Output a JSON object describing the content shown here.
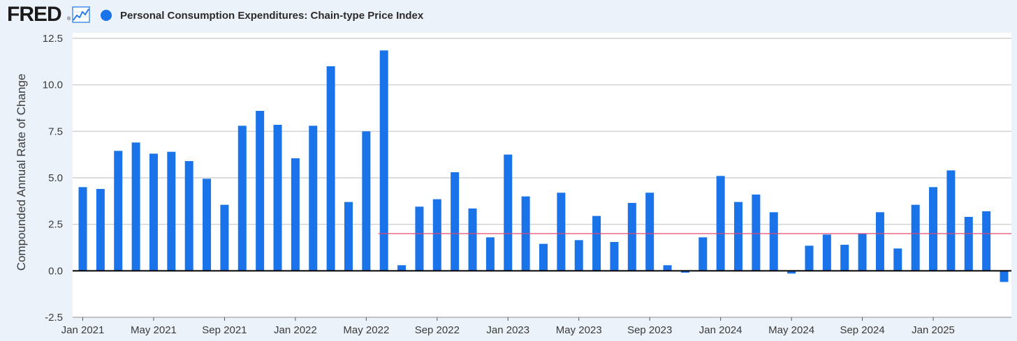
{
  "header": {
    "logo_text": "FRED",
    "logo_mark": "®",
    "graph_icon": "line-graph-icon"
  },
  "legend": {
    "label": "Personal Consumption Expenditures: Chain-type Price Index",
    "color": "#1a73e8"
  },
  "colors": {
    "bar": "#1a73e8",
    "reference_line": "#e34a6f",
    "zero_line": "#000000",
    "grid": "#c8c8c8",
    "plot_bg": "#ffffff",
    "page_bg": "#ecf2fa"
  },
  "chart_data": {
    "type": "bar",
    "title": "",
    "xlabel": "",
    "ylabel": "Compounded Annual Rate of Change",
    "ylim": [
      -2.5,
      12.5
    ],
    "yticks": [
      {
        "value": 12.5,
        "label": "12.5"
      },
      {
        "value": 10.0,
        "label": "10.0"
      },
      {
        "value": 7.5,
        "label": "7.5"
      },
      {
        "value": 5.0,
        "label": "5.0"
      },
      {
        "value": 2.5,
        "label": "2.5"
      },
      {
        "value": 0.0,
        "label": "0.0"
      },
      {
        "value": -2.5,
        "label": "-2.5"
      }
    ],
    "xticks": [
      {
        "index": 0,
        "label": "Jan 2021"
      },
      {
        "index": 4,
        "label": "May 2021"
      },
      {
        "index": 8,
        "label": "Sep 2021"
      },
      {
        "index": 12,
        "label": "Jan 2022"
      },
      {
        "index": 16,
        "label": "May 2022"
      },
      {
        "index": 20,
        "label": "Sep 2022"
      },
      {
        "index": 24,
        "label": "Jan 2023"
      },
      {
        "index": 28,
        "label": "May 2023"
      },
      {
        "index": 32,
        "label": "Sep 2023"
      },
      {
        "index": 36,
        "label": "Jan 2024"
      },
      {
        "index": 40,
        "label": "May 2024"
      },
      {
        "index": 44,
        "label": "Sep 2024"
      },
      {
        "index": 48,
        "label": "Jan 2025"
      }
    ],
    "categories": [
      "Jan 2021",
      "Feb 2021",
      "Mar 2021",
      "Apr 2021",
      "May 2021",
      "Jun 2021",
      "Jul 2021",
      "Aug 2021",
      "Sep 2021",
      "Oct 2021",
      "Nov 2021",
      "Dec 2021",
      "Jan 2022",
      "Feb 2022",
      "Mar 2022",
      "Apr 2022",
      "May 2022",
      "Jun 2022",
      "Jul 2022",
      "Aug 2022",
      "Sep 2022",
      "Oct 2022",
      "Nov 2022",
      "Dec 2022",
      "Jan 2023",
      "Feb 2023",
      "Mar 2023",
      "Apr 2023",
      "May 2023",
      "Jun 2023",
      "Jul 2023",
      "Aug 2023",
      "Sep 2023",
      "Oct 2023",
      "Nov 2023",
      "Dec 2023",
      "Jan 2024",
      "Feb 2024",
      "Mar 2024",
      "Apr 2024",
      "May 2024",
      "Jun 2024",
      "Jul 2024",
      "Aug 2024",
      "Sep 2024",
      "Oct 2024",
      "Nov 2024",
      "Dec 2024",
      "Jan 2025",
      "Feb 2025",
      "Mar 2025",
      "Apr 2025",
      "May 2025"
    ],
    "values": [
      4.5,
      4.4,
      6.45,
      6.9,
      6.3,
      6.4,
      5.9,
      4.95,
      3.55,
      7.8,
      8.6,
      7.85,
      6.05,
      7.8,
      11.0,
      3.7,
      7.5,
      11.85,
      0.3,
      3.45,
      3.85,
      5.3,
      3.35,
      1.8,
      6.25,
      4.0,
      1.45,
      4.2,
      1.65,
      2.95,
      1.55,
      3.65,
      4.2,
      0.3,
      -0.1,
      1.8,
      5.1,
      3.7,
      4.1,
      3.15,
      -0.15,
      1.35,
      1.95,
      1.4,
      2.0,
      3.15,
      1.2,
      3.55,
      4.5,
      5.4,
      2.9,
      3.2,
      -0.6
    ],
    "reference_line": {
      "value": 2.0,
      "start_index": 17
    },
    "legend_position": "top-left",
    "grid": true
  }
}
